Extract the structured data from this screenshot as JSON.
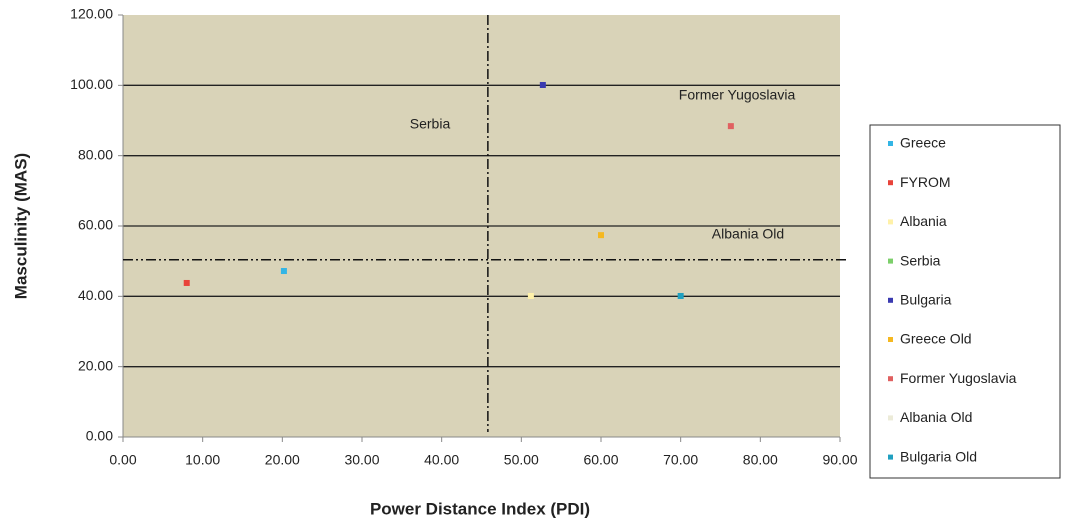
{
  "chart_data": {
    "type": "scatter",
    "x_label": "Power Distance Index (PDI)",
    "y_label": "Masculinity (MAS)",
    "xlim": [
      0,
      90
    ],
    "ylim": [
      0,
      120
    ],
    "xticks": [
      {
        "value": 0,
        "label": "0.00"
      },
      {
        "value": 10,
        "label": "10.00"
      },
      {
        "value": 20,
        "label": "20.00"
      },
      {
        "value": 30,
        "label": "30.00"
      },
      {
        "value": 40,
        "label": "40.00"
      },
      {
        "value": 50,
        "label": "50.00"
      },
      {
        "value": 60,
        "label": "60.00"
      },
      {
        "value": 70,
        "label": "70.00"
      },
      {
        "value": 80,
        "label": "80.00"
      },
      {
        "value": 90,
        "label": "90.00"
      }
    ],
    "yticks": [
      {
        "value": 0,
        "label": "0.00"
      },
      {
        "value": 20,
        "label": "20.00"
      },
      {
        "value": 40,
        "label": "40.00"
      },
      {
        "value": 60,
        "label": "60.00"
      },
      {
        "value": 80,
        "label": "80.00"
      },
      {
        "value": 100,
        "label": "100.00"
      },
      {
        "value": 120,
        "label": "120.00"
      }
    ],
    "grid": true,
    "legend": "right",
    "reference_lines": {
      "x": 45.8,
      "y": 50.4
    },
    "annotations": [
      "Serbia",
      "Former Yugoslavia",
      "Albania Old"
    ],
    "series": [
      {
        "name": "Greece",
        "color": "#33b5e5",
        "x": [
          20.2
        ],
        "values": [
          47.2
        ]
      },
      {
        "name": "FYROM",
        "color": "#e8433a",
        "x": [
          8.0
        ],
        "values": [
          43.8
        ]
      },
      {
        "name": "Albania",
        "color": "#fff1a8",
        "x": [
          51.2
        ],
        "values": [
          40.1
        ]
      },
      {
        "name": "Serbia",
        "color": "#7ccf6a",
        "x": [
          null
        ],
        "values": [
          null
        ]
      },
      {
        "name": "Bulgaria",
        "color": "#3a3ab0",
        "x": [
          52.7
        ],
        "values": [
          100.1
        ]
      },
      {
        "name": "Greece Old",
        "color": "#f5b820",
        "x": [
          60.0
        ],
        "values": [
          57.4
        ]
      },
      {
        "name": "Former Yugoslavia",
        "color": "#e06060",
        "x": [
          76.3
        ],
        "values": [
          88.4
        ]
      },
      {
        "name": "Albania Old",
        "color": "#ecebd8",
        "x": [
          null
        ],
        "values": [
          null
        ]
      },
      {
        "name": "Bulgaria Old",
        "color": "#20a0c0",
        "x": [
          70.0
        ],
        "values": [
          40.1
        ]
      }
    ]
  }
}
